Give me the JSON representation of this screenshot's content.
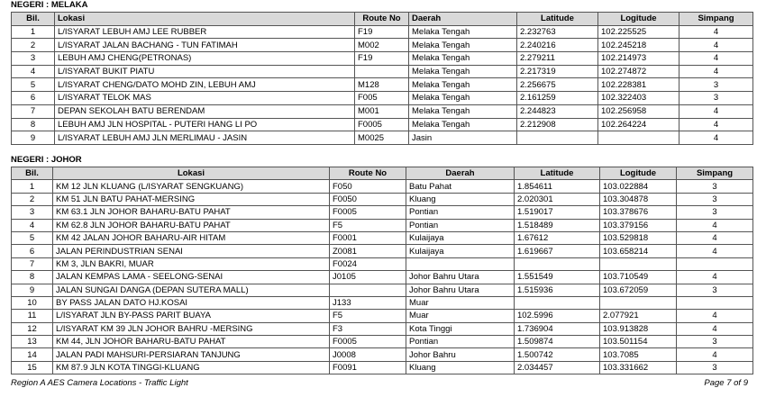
{
  "sections": [
    {
      "heading": "NEGERI : MELAKA",
      "columns": [
        "Bil.",
        "Lokasi",
        "Route No",
        "Daerah",
        "Latitude",
        "Logitude",
        "Simpang"
      ],
      "rows": [
        [
          "1",
          "L/ISYARAT LEBUH AMJ LEE RUBBER",
          "F19",
          "Melaka Tengah",
          "2.232763",
          "102.225525",
          "4"
        ],
        [
          "2",
          "L/ISYARAT JALAN BACHANG - TUN FATIMAH",
          "M002",
          "Melaka Tengah",
          "2.240216",
          "102.245218",
          "4"
        ],
        [
          "3",
          "LEBUH AMJ CHENG(PETRONAS)",
          "F19",
          "Melaka Tengah",
          "2.279211",
          "102.214973",
          "4"
        ],
        [
          "4",
          "L/ISYARAT BUKIT PIATU",
          null,
          "Melaka Tengah",
          "2.217319",
          "102.274872",
          "4"
        ],
        [
          "5",
          "L/ISYARAT CHENG/DATO MOHD ZIN, LEBUH AMJ",
          "M128",
          "Melaka Tengah",
          "2.256675",
          "102.228381",
          "3"
        ],
        [
          "6",
          "L/ISYARAT TELOK MAS",
          "F005",
          "Melaka Tengah",
          "2.161259",
          "102.322403",
          "3"
        ],
        [
          "7",
          "DEPAN SEKOLAH BATU BERENDAM",
          "M001",
          "Melaka Tengah",
          "2.244823",
          "102.256958",
          "4"
        ],
        [
          "8",
          "LEBUH AMJ JLN HOSPITAL - PUTERI HANG LI PO",
          "F0005",
          "Melaka Tengah",
          "2.212908",
          "102.264224",
          "4"
        ],
        [
          "9",
          "L/ISYARAT LEBUH AMJ JLN MERLIMAU - JASIN",
          "M0025",
          "Jasin",
          null,
          null,
          "4"
        ]
      ]
    },
    {
      "heading": "NEGERI : JOHOR",
      "columns": [
        "Bil.",
        "Lokasi",
        "Route No",
        "Daerah",
        "Latitude",
        "Logitude",
        "Simpang"
      ],
      "rows": [
        [
          "1",
          "KM 12 JLN KLUANG (L/ISYARAT SENGKUANG)",
          "F050",
          "Batu Pahat",
          "1.854611",
          "103.022884",
          "3"
        ],
        [
          "2",
          "KM 51 JLN BATU PAHAT-MERSING",
          "F0050",
          "Kluang",
          "2.020301",
          "103.304878",
          "3"
        ],
        [
          "3",
          "KM 63.1 JLN JOHOR BAHARU-BATU PAHAT",
          "F0005",
          "Pontian",
          "1.519017",
          "103.378676",
          "3"
        ],
        [
          "4",
          "KM 62.8 JLN JOHOR BAHARU-BATU PAHAT",
          "F5",
          "Pontian",
          "1.518489",
          "103.379156",
          "4"
        ],
        [
          "5",
          "KM 42 JALAN JOHOR BAHARU-AIR HITAM",
          "F0001",
          "Kulaijaya",
          "1.67612",
          "103.529818",
          "4"
        ],
        [
          "6",
          "JALAN PERINDUSTRIAN SENAI",
          "Z0081",
          "Kulaijaya",
          "1.619667",
          "103.658214",
          "4"
        ],
        [
          "7",
          "KM 3, JLN BAKRI, MUAR",
          "F0024",
          null,
          null,
          null,
          null
        ],
        [
          "8",
          "JALAN KEMPAS LAMA - SEELONG-SENAI",
          "J0105",
          "Johor Bahru Utara",
          "1.551549",
          "103.710549",
          "4"
        ],
        [
          "9",
          "JALAN SUNGAI DANGA (DEPAN SUTERA MALL)",
          null,
          "Johor Bahru Utara",
          "1.515936",
          "103.672059",
          "3"
        ],
        [
          "10",
          "BY PASS JALAN DATO HJ.KOSAI",
          "J133",
          "Muar",
          null,
          null,
          null
        ],
        [
          "11",
          "L/ISYARAT JLN BY-PASS PARIT BUAYA",
          "F5",
          "Muar",
          "102.5996",
          "2.077921",
          "4"
        ],
        [
          "12",
          "L/ISYARAT KM 39 JLN JOHOR BAHRU -MERSING",
          "F3",
          "Kota Tinggi",
          "1.736904",
          "103.913828",
          "4"
        ],
        [
          "13",
          "KM 44, JLN JOHOR BAHARU-BATU PAHAT",
          "F0005",
          "Pontian",
          "1.509874",
          "103.501154",
          "3"
        ],
        [
          "14",
          "JALAN PADI MAHSURI-PERSIARAN TANJUNG",
          "J0008",
          "Johor Bahru",
          "1.500742",
          "103.7085",
          "4"
        ],
        [
          "15",
          "KM 87.9 JLN KOTA TINGGI-KLUANG",
          "F0091",
          "Kluang",
          "2.034457",
          "103.331662",
          "3"
        ]
      ]
    }
  ],
  "footer": {
    "left": "Region A AES Camera Locations - Traffic Light",
    "right": "Page 7 of 9"
  }
}
